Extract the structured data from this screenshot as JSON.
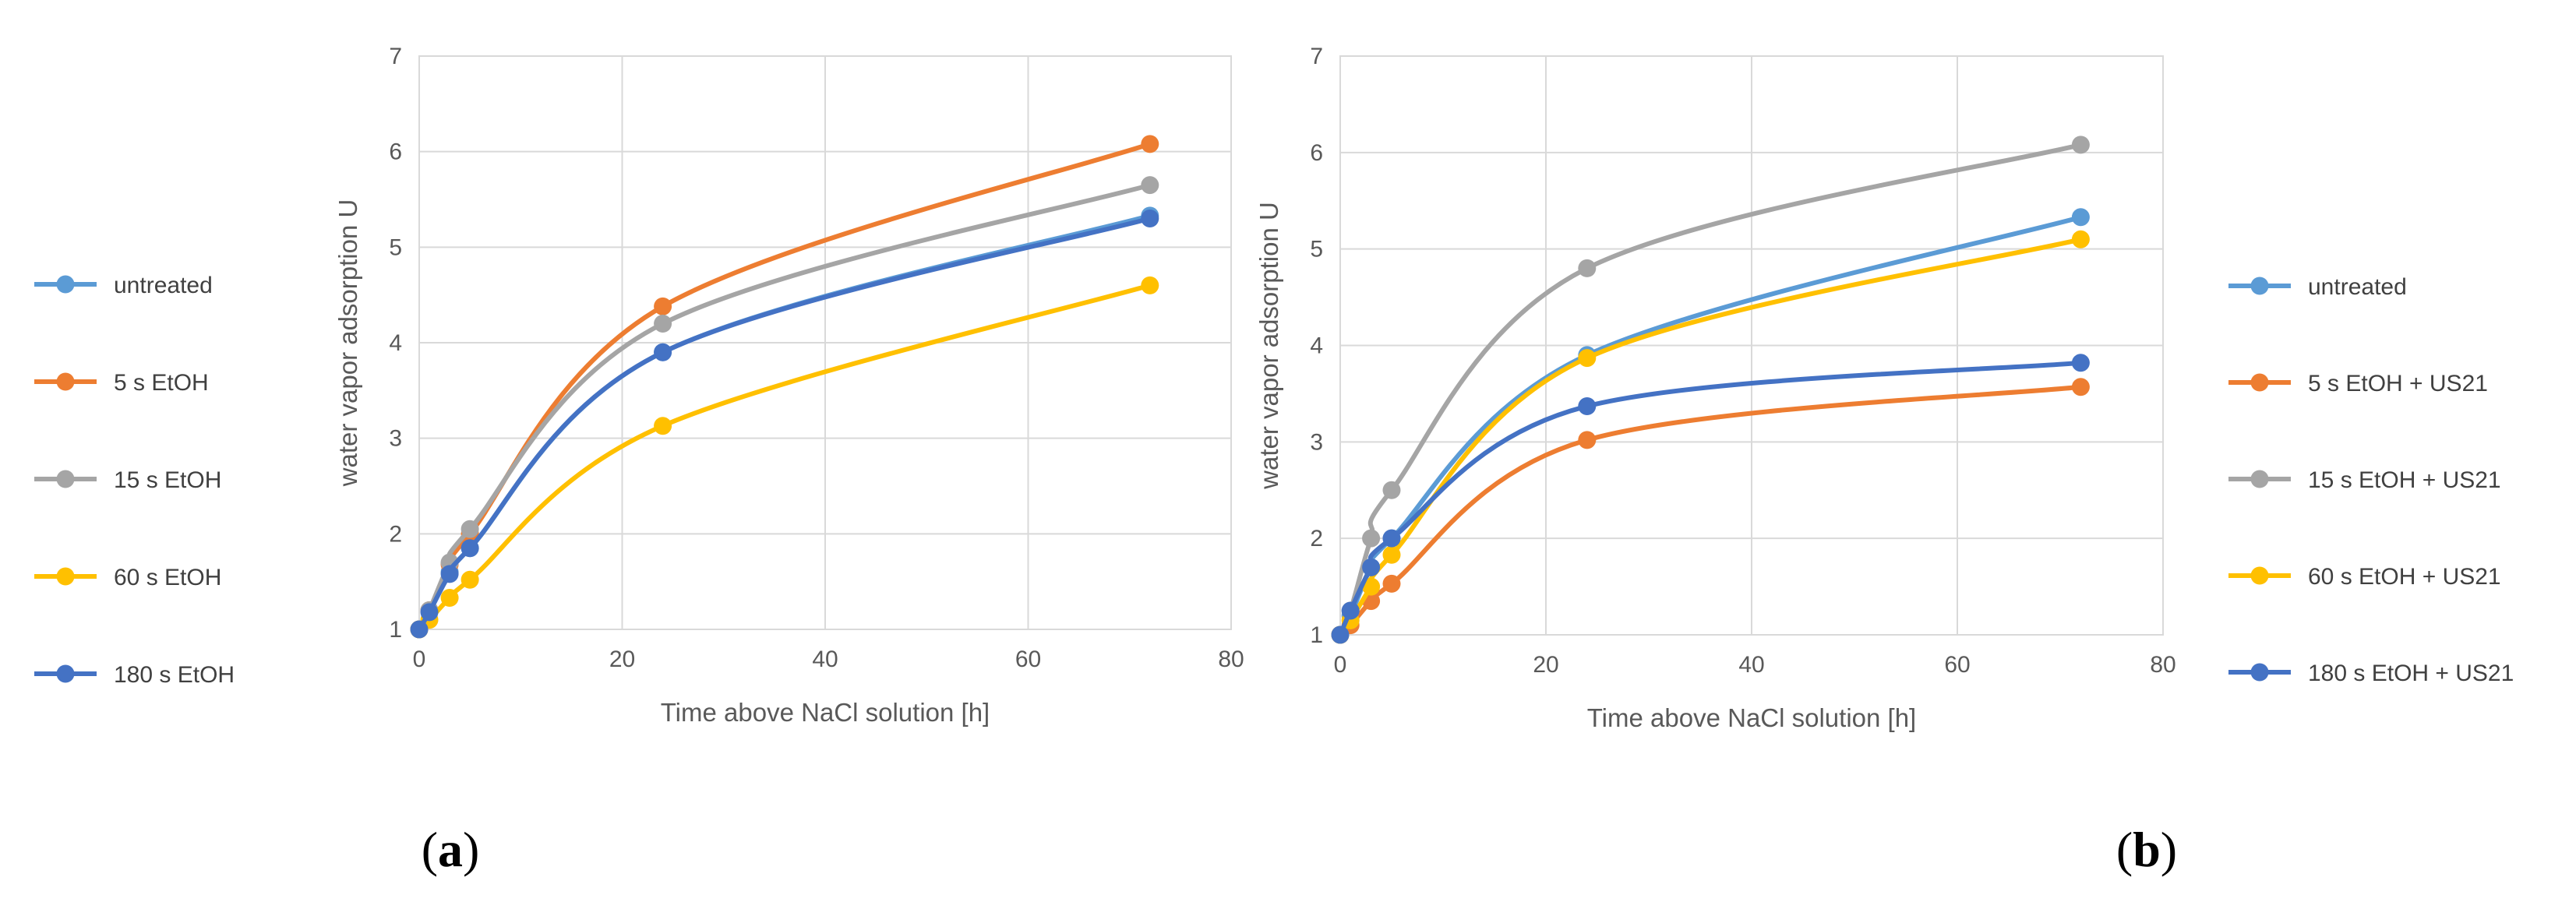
{
  "chart_data": [
    {
      "type": "line",
      "id": "a",
      "panel_label": "a",
      "xlabel": "Time above NaCl solution [h]",
      "ylabel": "water vapor adsorption U",
      "xlim": [
        0,
        80
      ],
      "ylim": [
        1,
        7
      ],
      "xticks": [
        0,
        20,
        40,
        60,
        80
      ],
      "yticks": [
        1,
        2,
        3,
        4,
        5,
        6,
        7
      ],
      "x": [
        0,
        1,
        3,
        5,
        24,
        72
      ],
      "series": [
        {
          "name": "untreated",
          "color": "#5b9bd5",
          "values": [
            1.0,
            1.2,
            1.6,
            1.85,
            3.9,
            5.33
          ]
        },
        {
          "name": " 5 s EtOH",
          "color": "#ed7d31",
          "values": [
            1.0,
            1.2,
            1.68,
            2.0,
            4.38,
            6.08
          ]
        },
        {
          "name": "15 s EtOH",
          "color": "#a5a5a5",
          "values": [
            1.0,
            1.2,
            1.7,
            2.05,
            4.2,
            5.65
          ]
        },
        {
          "name": "60 s EtOH",
          "color": "#ffc000",
          "values": [
            1.0,
            1.1,
            1.33,
            1.52,
            3.13,
            4.6
          ]
        },
        {
          "name": "180 s EtOH",
          "color": "#4472c4",
          "values": [
            1.0,
            1.18,
            1.58,
            1.85,
            3.9,
            5.3
          ]
        }
      ]
    },
    {
      "type": "line",
      "id": "b",
      "panel_label": "b",
      "xlabel": "Time above NaCl solution [h]",
      "ylabel": "water vapor adsorption U",
      "xlim": [
        0,
        80
      ],
      "ylim": [
        1,
        7
      ],
      "xticks": [
        0,
        20,
        40,
        60,
        80
      ],
      "yticks": [
        1,
        2,
        3,
        4,
        5,
        6,
        7
      ],
      "x": [
        0,
        1,
        3,
        5,
        24,
        72
      ],
      "series": [
        {
          "name": "untreated",
          "color": "#5b9bd5",
          "values": [
            1.0,
            1.2,
            1.7,
            2.0,
            3.9,
            5.33
          ]
        },
        {
          "name": " 5 s EtOH + US21",
          "color": "#ed7d31",
          "values": [
            1.0,
            1.1,
            1.35,
            1.53,
            3.02,
            3.57
          ]
        },
        {
          "name": "15 s EtOH + US21",
          "color": "#a5a5a5",
          "values": [
            1.0,
            1.25,
            2.0,
            2.5,
            4.8,
            6.08
          ]
        },
        {
          "name": "60 s EtOH + US21",
          "color": "#ffc000",
          "values": [
            1.0,
            1.15,
            1.5,
            1.83,
            3.87,
            5.1
          ]
        },
        {
          "name": "180 s EtOH + US21",
          "color": "#4472c4",
          "values": [
            1.0,
            1.25,
            1.7,
            2.0,
            3.37,
            3.82
          ]
        }
      ]
    }
  ]
}
